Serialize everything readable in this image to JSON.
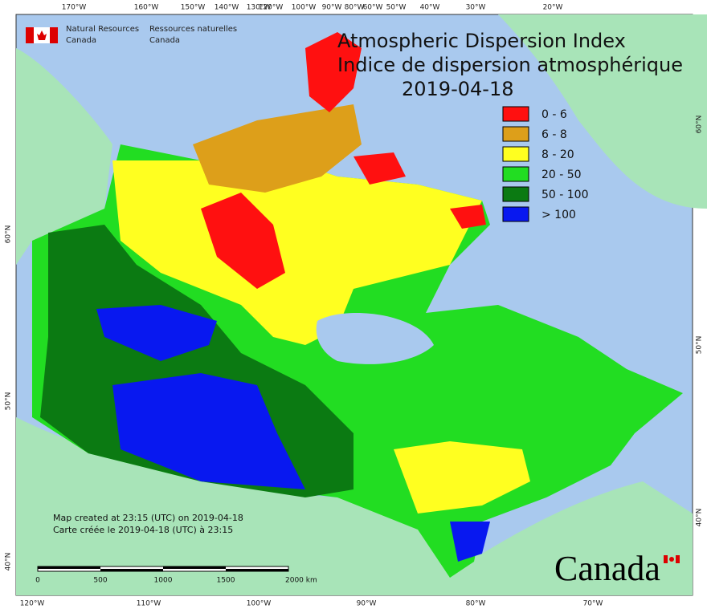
{
  "header": {
    "agency_en": [
      "Natural Resources",
      "Canada"
    ],
    "agency_fr": [
      "Ressources naturelles",
      "Canada"
    ]
  },
  "title": {
    "line_en": "Atmospheric Dispersion Index",
    "line_fr": "Indice de dispersion atmosphérique",
    "date": "2019-04-18"
  },
  "legend": {
    "items": [
      {
        "label": "0 - 6",
        "color": "#ff1010"
      },
      {
        "label": "6 - 8",
        "color": "#dd9f1a"
      },
      {
        "label": "8 - 20",
        "color": "#ffff20"
      },
      {
        "label": "20 - 50",
        "color": "#22dd22"
      },
      {
        "label": "50 - 100",
        "color": "#0b7a12"
      },
      {
        "label": "> 100",
        "color": "#0818f0"
      }
    ]
  },
  "graticule": {
    "top": [
      "170°W",
      "160°W",
      "150°W",
      "140°W",
      "130°W",
      "120°W",
      "100°W",
      "90°W",
      "80°W",
      "60°W",
      "50°W",
      "40°W",
      "30°W",
      "20°W"
    ],
    "bottom": [
      "120°W",
      "110°W",
      "100°W",
      "90°W",
      "80°W",
      "70°W"
    ],
    "left": [
      "60°N",
      "50°N",
      "40°N"
    ],
    "right": [
      "60°N",
      "50°N",
      "40°N"
    ]
  },
  "notes": [
    "Map created at 23:15 (UTC) on 2019-04-18",
    "Carte créée le 2019-04-18 (UTC) à 23:15"
  ],
  "scale_bar": [
    "0",
    "500",
    "1000",
    "1500",
    "2000 km"
  ],
  "wordmark": "Canada"
}
